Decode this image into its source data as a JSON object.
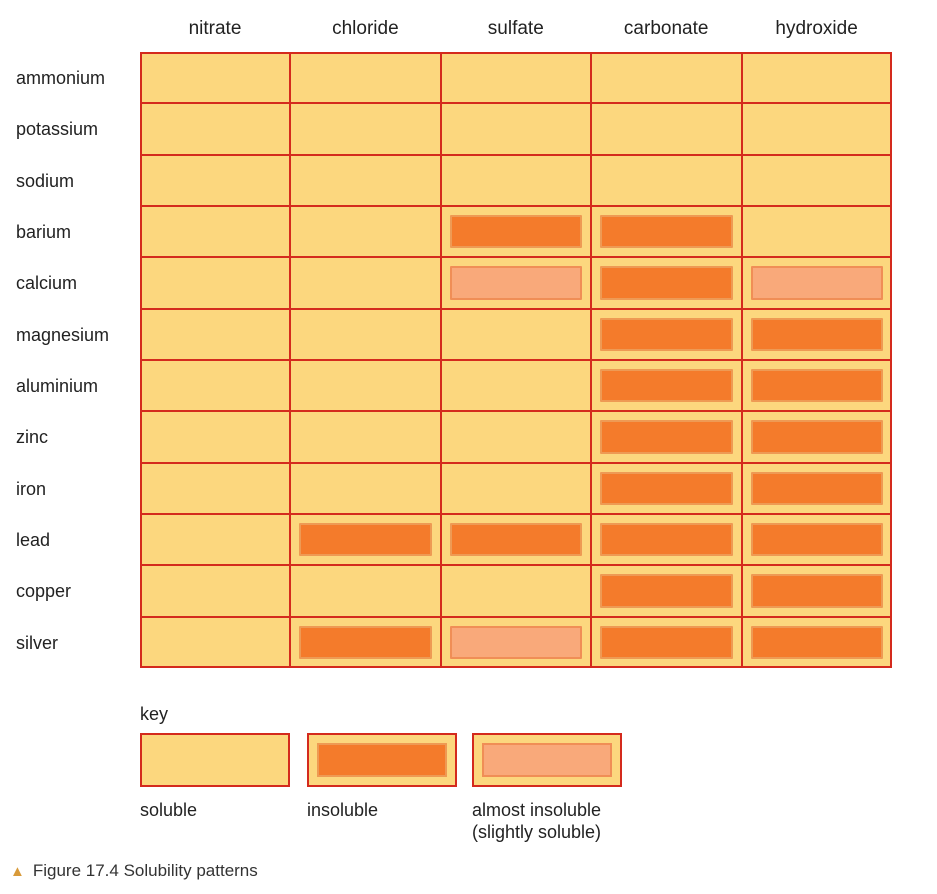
{
  "chart_data": {
    "type": "table",
    "columns": [
      "nitrate",
      "chloride",
      "sulfate",
      "carbonate",
      "hydroxide"
    ],
    "rows": [
      {
        "label": "ammonium",
        "values": [
          "soluble",
          "soluble",
          "soluble",
          "soluble",
          "soluble"
        ]
      },
      {
        "label": "potassium",
        "values": [
          "soluble",
          "soluble",
          "soluble",
          "soluble",
          "soluble"
        ]
      },
      {
        "label": "sodium",
        "values": [
          "soluble",
          "soluble",
          "soluble",
          "soluble",
          "soluble"
        ]
      },
      {
        "label": "barium",
        "values": [
          "soluble",
          "soluble",
          "insoluble",
          "insoluble",
          "soluble"
        ]
      },
      {
        "label": "calcium",
        "values": [
          "soluble",
          "soluble",
          "slightly",
          "insoluble",
          "slightly"
        ]
      },
      {
        "label": "magnesium",
        "values": [
          "soluble",
          "soluble",
          "soluble",
          "insoluble",
          "insoluble"
        ]
      },
      {
        "label": "aluminium",
        "values": [
          "soluble",
          "soluble",
          "soluble",
          "insoluble",
          "insoluble"
        ]
      },
      {
        "label": "zinc",
        "values": [
          "soluble",
          "soluble",
          "soluble",
          "insoluble",
          "insoluble"
        ]
      },
      {
        "label": "iron",
        "values": [
          "soluble",
          "soluble",
          "soluble",
          "insoluble",
          "insoluble"
        ]
      },
      {
        "label": "lead",
        "values": [
          "soluble",
          "insoluble",
          "insoluble",
          "insoluble",
          "insoluble"
        ]
      },
      {
        "label": "copper",
        "values": [
          "soluble",
          "soluble",
          "soluble",
          "insoluble",
          "insoluble"
        ]
      },
      {
        "label": "silver",
        "values": [
          "soluble",
          "insoluble",
          "slightly",
          "insoluble",
          "insoluble"
        ]
      }
    ],
    "key": {
      "title": "key",
      "items": [
        {
          "category": "soluble",
          "label_lines": [
            "soluble"
          ]
        },
        {
          "category": "insoluble",
          "label_lines": [
            "insoluble"
          ]
        },
        {
          "category": "slightly",
          "label_lines": [
            "almost insoluble",
            "(slightly soluble)"
          ]
        }
      ]
    },
    "colors": {
      "soluble": "#fcd77e",
      "insoluble": "#f47b2b",
      "slightly": "#f9a97a",
      "grid_line": "#d42a1d"
    }
  },
  "caption": "Figure 17.4 Solubility patterns"
}
